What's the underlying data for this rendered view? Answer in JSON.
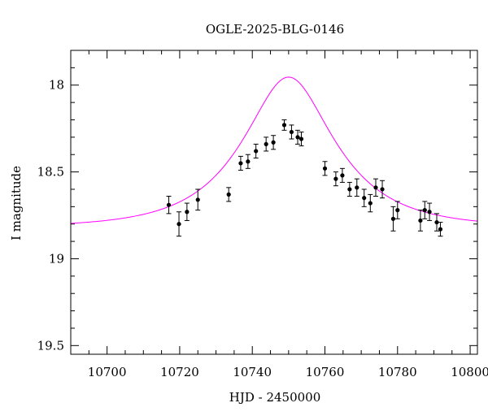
{
  "chart_data": {
    "type": "scatter",
    "title": "OGLE-2025-BLG-0146",
    "xlabel": "HJD - 2450000",
    "ylabel": "I magnitude",
    "xlim": [
      10690,
      10802
    ],
    "ylim": [
      19.55,
      17.8
    ],
    "y_inverted": true,
    "xticks_major": [
      10700,
      10720,
      10740,
      10760,
      10780,
      10800
    ],
    "xtick_labels": [
      "10700",
      "10720",
      "10740",
      "10760",
      "10780",
      "10800"
    ],
    "yticks_major": [
      18,
      18.5,
      19,
      19.5
    ],
    "ytick_labels": [
      "18",
      "18.5",
      "19",
      "19.5"
    ],
    "grid": false,
    "colors": {
      "points": "#000000",
      "model": "#ff00ff"
    },
    "series": [
      {
        "x": [
          10717.0,
          10719.8,
          10722.0,
          10725.0,
          10733.5,
          10736.8,
          10738.8,
          10741.0,
          10743.8,
          10745.8,
          10748.8,
          10750.8,
          10752.5,
          10753.5,
          10760.0,
          10763.0,
          10764.8,
          10766.8,
          10768.8,
          10770.8,
          10772.5,
          10774.0,
          10775.8,
          10778.8,
          10780.0,
          10786.3,
          10787.5,
          10788.8,
          10790.8,
          10791.8
        ],
        "y": [
          18.69,
          18.8,
          18.73,
          18.66,
          18.63,
          18.45,
          18.44,
          18.38,
          18.34,
          18.33,
          18.23,
          18.27,
          18.3,
          18.31,
          18.48,
          18.54,
          18.52,
          18.6,
          18.59,
          18.65,
          18.68,
          18.59,
          18.6,
          18.77,
          18.72,
          18.78,
          18.72,
          18.73,
          18.79,
          18.83
        ],
        "yerr": [
          0.05,
          0.07,
          0.05,
          0.06,
          0.04,
          0.04,
          0.04,
          0.04,
          0.04,
          0.04,
          0.03,
          0.04,
          0.04,
          0.04,
          0.04,
          0.04,
          0.04,
          0.04,
          0.05,
          0.05,
          0.05,
          0.05,
          0.05,
          0.07,
          0.05,
          0.06,
          0.05,
          0.05,
          0.05,
          0.04
        ]
      }
    ],
    "model": {
      "type": "paczynski",
      "t0": 10750.0,
      "tE": 22.0,
      "u0": 0.49,
      "baseline_mag": 18.82
    }
  }
}
